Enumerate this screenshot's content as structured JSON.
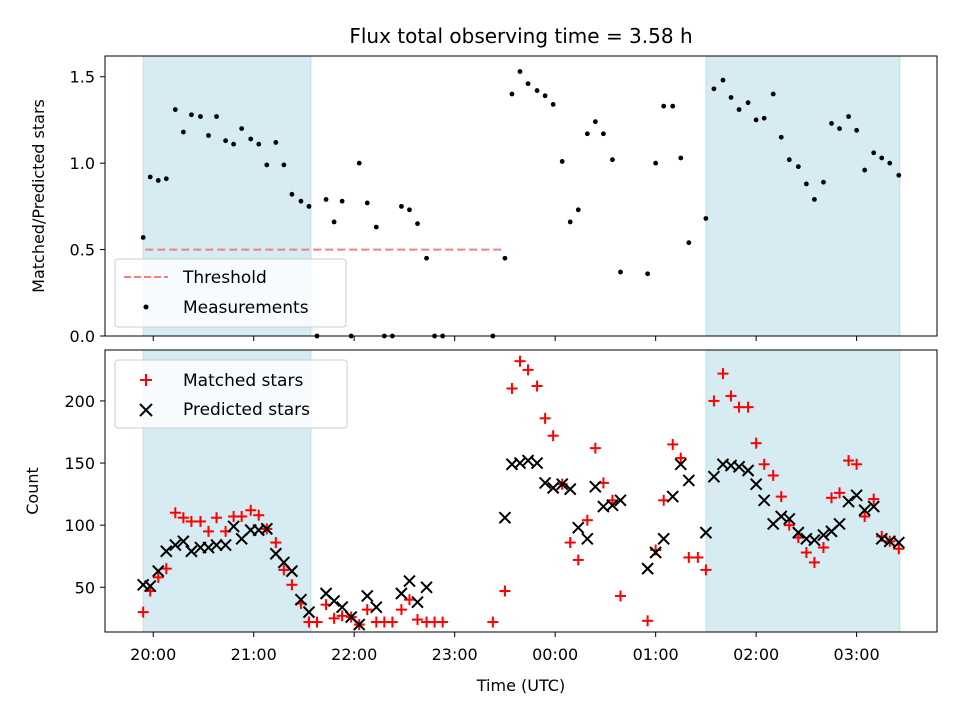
{
  "figure": {
    "title": "Flux total observing time = 3.58 h"
  },
  "chart_data": [
    {
      "type": "scatter",
      "panel": "top",
      "ylabel": "Matched/Predicted stars",
      "xlabel": "",
      "ylim": [
        0,
        1.62
      ],
      "yticks": [
        0.0,
        0.5,
        1.0,
        1.5
      ],
      "ytick_labels": [
        "0.0",
        "0.5",
        "1.0",
        "1.5"
      ],
      "threshold": {
        "name": "Threshold",
        "value": 0.5,
        "x_range": [
          -0.08,
          3.47
        ],
        "color": "#f08080",
        "style": "dashed"
      },
      "shaded_intervals": [
        [
          -0.1,
          1.57
        ],
        [
          5.5,
          7.43
        ]
      ],
      "shade_color": "#add8e6",
      "legend": {
        "position": "lower-left",
        "entries": [
          "Threshold",
          "Measurements"
        ]
      },
      "series": [
        {
          "name": "Measurements",
          "color": "#000000",
          "marker": "dot",
          "points": [
            [
              -0.1,
              0.57
            ],
            [
              -0.03,
              0.92
            ],
            [
              0.05,
              0.9
            ],
            [
              0.13,
              0.91
            ],
            [
              0.22,
              1.31
            ],
            [
              0.3,
              1.18
            ],
            [
              0.38,
              1.28
            ],
            [
              0.47,
              1.27
            ],
            [
              0.55,
              1.16
            ],
            [
              0.63,
              1.27
            ],
            [
              0.72,
              1.13
            ],
            [
              0.8,
              1.11
            ],
            [
              0.88,
              1.2
            ],
            [
              0.97,
              1.14
            ],
            [
              1.05,
              1.11
            ],
            [
              1.13,
              0.99
            ],
            [
              1.22,
              1.12
            ],
            [
              1.3,
              0.99
            ],
            [
              1.38,
              0.82
            ],
            [
              1.47,
              0.78
            ],
            [
              1.55,
              0.75
            ],
            [
              1.63,
              0.0
            ],
            [
              1.72,
              0.79
            ],
            [
              1.8,
              0.66
            ],
            [
              1.88,
              0.78
            ],
            [
              1.97,
              0.0
            ],
            [
              2.05,
              1.0
            ],
            [
              2.13,
              0.77
            ],
            [
              2.22,
              0.63
            ],
            [
              2.3,
              0.0
            ],
            [
              2.38,
              0.0
            ],
            [
              2.47,
              0.75
            ],
            [
              2.55,
              0.73
            ],
            [
              2.63,
              0.65
            ],
            [
              2.72,
              0.45
            ],
            [
              2.8,
              0.0
            ],
            [
              2.88,
              0.0
            ],
            [
              3.38,
              0.0
            ],
            [
              3.5,
              0.45
            ],
            [
              3.57,
              1.4
            ],
            [
              3.65,
              1.53
            ],
            [
              3.73,
              1.46
            ],
            [
              3.82,
              1.42
            ],
            [
              3.9,
              1.39
            ],
            [
              3.98,
              1.34
            ],
            [
              4.07,
              1.01
            ],
            [
              4.15,
              0.66
            ],
            [
              4.23,
              0.73
            ],
            [
              4.32,
              1.17
            ],
            [
              4.4,
              1.24
            ],
            [
              4.48,
              1.17
            ],
            [
              4.57,
              1.02
            ],
            [
              4.65,
              0.37
            ],
            [
              4.92,
              0.36
            ],
            [
              5.0,
              1.0
            ],
            [
              5.08,
              1.33
            ],
            [
              5.17,
              1.33
            ],
            [
              5.25,
              1.03
            ],
            [
              5.33,
              0.54
            ],
            [
              5.5,
              0.68
            ],
            [
              5.58,
              1.43
            ],
            [
              5.67,
              1.48
            ],
            [
              5.75,
              1.38
            ],
            [
              5.83,
              1.31
            ],
            [
              5.92,
              1.35
            ],
            [
              6.0,
              1.25
            ],
            [
              6.08,
              1.26
            ],
            [
              6.17,
              1.4
            ],
            [
              6.25,
              1.15
            ],
            [
              6.33,
              1.02
            ],
            [
              6.42,
              0.98
            ],
            [
              6.5,
              0.88
            ],
            [
              6.58,
              0.79
            ],
            [
              6.67,
              0.89
            ],
            [
              6.75,
              1.23
            ],
            [
              6.83,
              1.2
            ],
            [
              6.92,
              1.27
            ],
            [
              7.0,
              1.19
            ],
            [
              7.08,
              0.96
            ],
            [
              7.17,
              1.06
            ],
            [
              7.25,
              1.03
            ],
            [
              7.33,
              1.0
            ],
            [
              7.42,
              0.93
            ]
          ]
        }
      ]
    },
    {
      "type": "scatter",
      "panel": "bottom",
      "xlabel": "Time (UTC)",
      "ylabel": "Count",
      "ylim": [
        14,
        241
      ],
      "yticks": [
        50,
        100,
        150,
        200
      ],
      "ytick_labels": [
        "50",
        "100",
        "150",
        "200"
      ],
      "xlim": [
        -0.48,
        7.8
      ],
      "xticks": [
        0,
        1,
        2,
        3,
        4,
        5,
        6,
        7
      ],
      "xtick_labels": [
        "20:00",
        "21:00",
        "22:00",
        "23:00",
        "00:00",
        "01:00",
        "02:00",
        "03:00"
      ],
      "shaded_intervals": [
        [
          -0.1,
          1.57
        ],
        [
          5.5,
          7.43
        ]
      ],
      "shade_color": "#add8e6",
      "legend": {
        "position": "top-left",
        "entries": [
          "Matched stars",
          "Predicted stars"
        ]
      },
      "series": [
        {
          "name": "Matched stars",
          "color": "#ff0000",
          "marker": "plus",
          "points": [
            [
              -0.1,
              30
            ],
            [
              -0.03,
              47
            ],
            [
              0.05,
              58
            ],
            [
              0.13,
              65
            ],
            [
              0.22,
              110
            ],
            [
              0.3,
              106
            ],
            [
              0.38,
              103
            ],
            [
              0.47,
              103
            ],
            [
              0.55,
              95
            ],
            [
              0.63,
              106
            ],
            [
              0.72,
              95
            ],
            [
              0.8,
              107
            ],
            [
              0.88,
              107
            ],
            [
              0.97,
              112
            ],
            [
              1.05,
              108
            ],
            [
              1.13,
              97
            ],
            [
              1.22,
              86
            ],
            [
              1.3,
              64
            ],
            [
              1.38,
              52
            ],
            [
              1.47,
              37
            ],
            [
              1.55,
              22
            ],
            [
              1.63,
              22
            ],
            [
              1.72,
              36
            ],
            [
              1.8,
              25
            ],
            [
              1.88,
              27
            ],
            [
              1.97,
              26
            ],
            [
              2.05,
              20
            ],
            [
              2.13,
              32
            ],
            [
              2.22,
              22
            ],
            [
              2.3,
              22
            ],
            [
              2.38,
              22
            ],
            [
              2.47,
              32
            ],
            [
              2.55,
              40
            ],
            [
              2.63,
              24
            ],
            [
              2.72,
              22
            ],
            [
              2.8,
              22
            ],
            [
              2.88,
              22
            ],
            [
              3.38,
              22
            ],
            [
              3.5,
              47
            ],
            [
              3.57,
              210
            ],
            [
              3.65,
              232
            ],
            [
              3.73,
              225
            ],
            [
              3.82,
              212
            ],
            [
              3.9,
              186
            ],
            [
              3.98,
              172
            ],
            [
              4.07,
              133
            ],
            [
              4.15,
              86
            ],
            [
              4.23,
              72
            ],
            [
              4.32,
              104
            ],
            [
              4.4,
              162
            ],
            [
              4.48,
              134
            ],
            [
              4.57,
              120
            ],
            [
              4.65,
              43
            ],
            [
              4.92,
              23
            ],
            [
              5.0,
              80
            ],
            [
              5.08,
              120
            ],
            [
              5.17,
              165
            ],
            [
              5.25,
              154
            ],
            [
              5.33,
              74
            ],
            [
              5.42,
              74
            ],
            [
              5.5,
              64
            ],
            [
              5.58,
              200
            ],
            [
              5.67,
              222
            ],
            [
              5.75,
              204
            ],
            [
              5.83,
              195
            ],
            [
              5.92,
              195
            ],
            [
              6.0,
              166
            ],
            [
              6.08,
              149
            ],
            [
              6.17,
              140
            ],
            [
              6.25,
              123
            ],
            [
              6.33,
              100
            ],
            [
              6.42,
              90
            ],
            [
              6.5,
              78
            ],
            [
              6.58,
              70
            ],
            [
              6.67,
              82
            ],
            [
              6.75,
              122
            ],
            [
              6.83,
              126
            ],
            [
              6.92,
              152
            ],
            [
              7.0,
              149
            ],
            [
              7.08,
              107
            ],
            [
              7.17,
              121
            ],
            [
              7.25,
              91
            ],
            [
              7.33,
              87
            ],
            [
              7.42,
              81
            ]
          ]
        },
        {
          "name": "Predicted stars",
          "color": "#000000",
          "marker": "x",
          "points": [
            [
              -0.1,
              52
            ],
            [
              -0.03,
              51
            ],
            [
              0.05,
              63
            ],
            [
              0.13,
              79
            ],
            [
              0.22,
              84
            ],
            [
              0.3,
              87
            ],
            [
              0.38,
              79
            ],
            [
              0.47,
              82
            ],
            [
              0.55,
              82
            ],
            [
              0.63,
              84
            ],
            [
              0.72,
              84
            ],
            [
              0.8,
              99
            ],
            [
              0.88,
              89
            ],
            [
              0.97,
              96
            ],
            [
              1.05,
              96
            ],
            [
              1.13,
              97
            ],
            [
              1.22,
              77
            ],
            [
              1.3,
              70
            ],
            [
              1.38,
              63
            ],
            [
              1.47,
              40
            ],
            [
              1.55,
              30
            ],
            [
              1.72,
              45
            ],
            [
              1.8,
              39
            ],
            [
              1.88,
              34
            ],
            [
              1.97,
              26
            ],
            [
              2.05,
              20
            ],
            [
              2.13,
              43
            ],
            [
              2.22,
              34
            ],
            [
              2.47,
              45
            ],
            [
              2.55,
              55
            ],
            [
              2.63,
              38
            ],
            [
              2.72,
              50
            ],
            [
              3.5,
              106
            ],
            [
              3.57,
              149
            ],
            [
              3.65,
              150
            ],
            [
              3.73,
              152
            ],
            [
              3.82,
              150
            ],
            [
              3.9,
              134
            ],
            [
              3.98,
              130
            ],
            [
              4.07,
              133
            ],
            [
              4.15,
              129
            ],
            [
              4.23,
              98
            ],
            [
              4.32,
              89
            ],
            [
              4.4,
              131
            ],
            [
              4.48,
              115
            ],
            [
              4.57,
              116
            ],
            [
              4.65,
              120
            ],
            [
              4.92,
              65
            ],
            [
              5.0,
              78
            ],
            [
              5.08,
              89
            ],
            [
              5.17,
              123
            ],
            [
              5.25,
              149
            ],
            [
              5.33,
              136
            ],
            [
              5.5,
              94
            ],
            [
              5.58,
              139
            ],
            [
              5.67,
              149
            ],
            [
              5.75,
              148
            ],
            [
              5.83,
              147
            ],
            [
              5.92,
              144
            ],
            [
              6.0,
              133
            ],
            [
              6.08,
              120
            ],
            [
              6.17,
              101
            ],
            [
              6.25,
              107
            ],
            [
              6.33,
              105
            ],
            [
              6.42,
              94
            ],
            [
              6.5,
              89
            ],
            [
              6.58,
              88
            ],
            [
              6.67,
              92
            ],
            [
              6.75,
              95
            ],
            [
              6.83,
              101
            ],
            [
              6.92,
              119
            ],
            [
              7.0,
              124
            ],
            [
              7.08,
              112
            ],
            [
              7.17,
              115
            ],
            [
              7.25,
              89
            ],
            [
              7.33,
              87
            ],
            [
              7.42,
              86
            ]
          ]
        }
      ]
    }
  ]
}
